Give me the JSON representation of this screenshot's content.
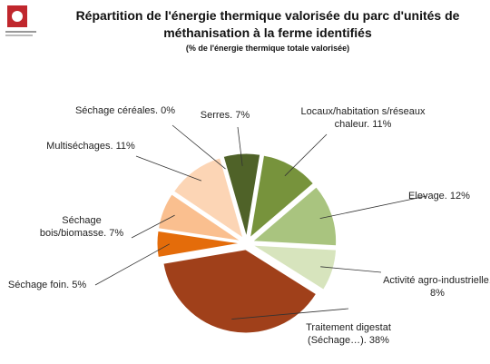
{
  "chart_data": {
    "type": "pie",
    "title": "Répartition de l'énergie thermique valorisée du parc d'unités de méthanisation à la ferme identifiés",
    "subtitle": "(% de l'énergie thermique totale valorisée)",
    "categories": [
      "Serres.",
      "Locaux/habitation s/réseaux chaleur.",
      "Elevage.",
      "Activité agro-industrielle.",
      "Traitement digestat (Séchage…).",
      "Séchage foin.",
      "Séchage bois/biomasse.",
      "Multiséchages.",
      "Séchage céréales."
    ],
    "values": [
      7,
      11,
      12,
      8,
      38,
      5,
      7,
      11,
      0
    ],
    "value_labels": [
      "7%",
      "11%",
      "12%",
      "8%",
      "38%",
      "5%",
      "7%",
      "11%",
      "0%"
    ],
    "colors": [
      "#4f6228",
      "#77933c",
      "#a9c47f",
      "#d7e4bd",
      "#a0401a",
      "#e46c0a",
      "#fabf8f",
      "#fcd5b5",
      "#fde9d9"
    ]
  }
}
